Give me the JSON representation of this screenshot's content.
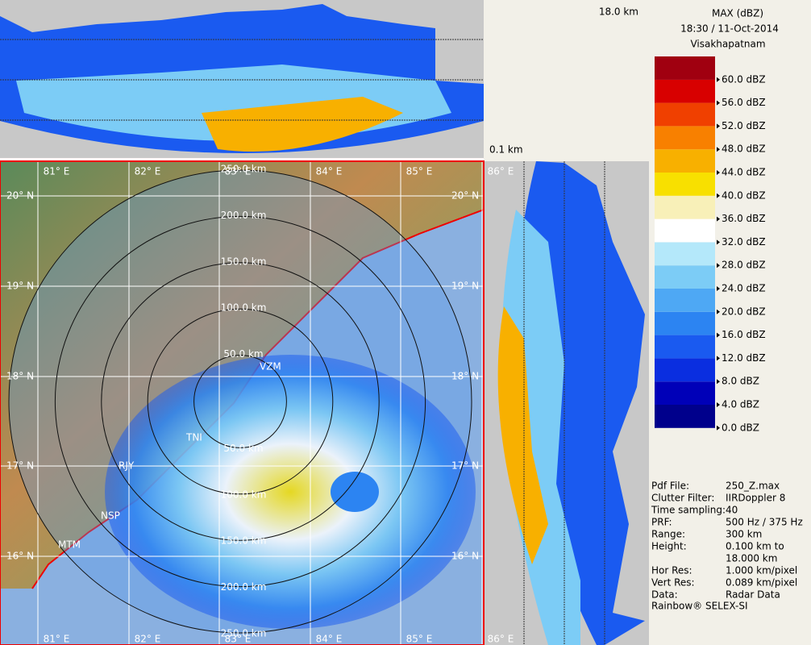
{
  "header": {
    "title": "MAX (dBZ)",
    "datetime": "18:30 / 11-Oct-2014",
    "station": "Visakhapatnam"
  },
  "top_panel": {
    "height_label": "18.0 km"
  },
  "side_panel": {
    "height_label": "0.1 km"
  },
  "legend": {
    "levels": [
      {
        "label": "0.0 dBZ",
        "color": "#00008c"
      },
      {
        "label": "4.0 dBZ",
        "color": "#0000b8"
      },
      {
        "label": "8.0 dBZ",
        "color": "#0a2ee0"
      },
      {
        "label": "12.0 dBZ",
        "color": "#1a5af0"
      },
      {
        "label": "16.0 dBZ",
        "color": "#2c84f2"
      },
      {
        "label": "20.0 dBZ",
        "color": "#4ea8f4"
      },
      {
        "label": "24.0 dBZ",
        "color": "#7cccf6"
      },
      {
        "label": "28.0 dBZ",
        "color": "#b4e8fa"
      },
      {
        "label": "32.0 dBZ",
        "color": "#ffffff"
      },
      {
        "label": "36.0 dBZ",
        "color": "#f8f0b8"
      },
      {
        "label": "40.0 dBZ",
        "color": "#f8e000"
      },
      {
        "label": "44.0 dBZ",
        "color": "#f8b000"
      },
      {
        "label": "48.0 dBZ",
        "color": "#f88000"
      },
      {
        "label": "52.0 dBZ",
        "color": "#f04000"
      },
      {
        "label": "56.0 dBZ",
        "color": "#d80000"
      },
      {
        "label": "60.0 dBZ",
        "color": "#a00010"
      }
    ],
    "top_color": "#7a0a3a"
  },
  "map": {
    "lon_labels": [
      "81° E",
      "82° E",
      "83° E",
      "84° E",
      "85° E",
      "86° E"
    ],
    "lat_labels": [
      "20° N",
      "19° N",
      "18° N",
      "17° N",
      "16° N"
    ],
    "range_north": [
      "50.0 km",
      "100.0 km",
      "150.0 km",
      "200.0 km",
      "250.0 km"
    ],
    "range_south": [
      "50.0 km",
      "100.0 km",
      "150.0 km",
      "200.0 km",
      "250.0 km"
    ],
    "sites": [
      "VZM",
      "TNI",
      "RJY",
      "NSP",
      "MTM"
    ]
  },
  "info": {
    "rows": [
      [
        "Pdf File:",
        "250_Z.max"
      ],
      [
        "Clutter Filter:",
        "IIRDoppler 8"
      ],
      [
        "Time sampling:",
        "40"
      ],
      [
        "PRF:",
        "500 Hz / 375 Hz"
      ],
      [
        "Range:",
        "300 km"
      ],
      [
        "Height:",
        "0.100 km to"
      ],
      [
        "",
        "18.000 km"
      ],
      [
        "Hor Res:",
        "1.000 km/pixel"
      ],
      [
        "Vert Res:",
        "0.089 km/pixel"
      ],
      [
        "Data:",
        "Radar Data"
      ]
    ],
    "footer": "Rainbow® SELEX-SI"
  }
}
